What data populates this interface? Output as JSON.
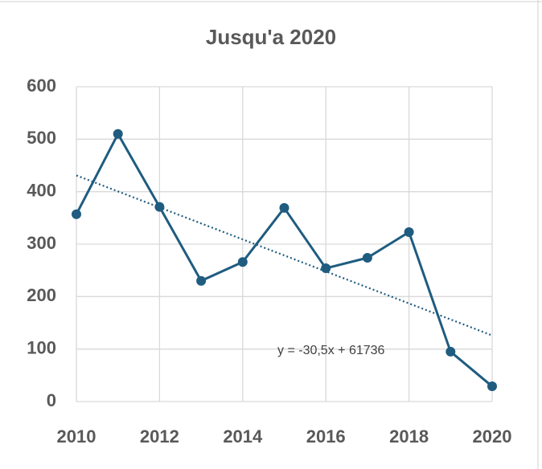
{
  "chart_data": {
    "type": "line",
    "title": "Jusqu'a 2020",
    "x": [
      2010,
      2011,
      2012,
      2013,
      2014,
      2015,
      2016,
      2017,
      2018,
      2019,
      2020
    ],
    "series": [
      {
        "name": null,
        "color": "#1f5c80",
        "values": [
          357,
          510,
          371,
          230,
          266,
          369,
          254,
          274,
          323,
          95,
          29
        ]
      }
    ],
    "xlim": [
      2010,
      2020
    ],
    "xticks": [
      2010,
      2012,
      2014,
      2016,
      2018,
      2020
    ],
    "ylim": [
      0,
      600
    ],
    "yticks": [
      0,
      100,
      200,
      300,
      400,
      500,
      600
    ],
    "grid": true,
    "trendline": {
      "slope": -30.5,
      "intercept": 61736,
      "label": "y = -30,5x + 61736"
    }
  }
}
